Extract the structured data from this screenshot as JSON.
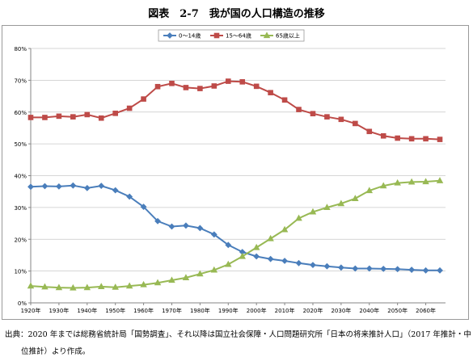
{
  "figure": {
    "title": "図表　2‐7　我が国の人口構造の推移",
    "source_line1": "出典：2020 年までは総務省統計局「国勢調査」、それ以降は国立社会保障・人口問題研究所「日本の将来推計人口」（2017 年推計・中",
    "source_line2": "位推計）より作成。"
  },
  "chart_data": {
    "type": "line",
    "title": "",
    "xlabel": "",
    "ylabel": "",
    "ylim": [
      0,
      80
    ],
    "x_ticks": [
      "1920年",
      "1930年",
      "1940年",
      "1950年",
      "1960年",
      "1970年",
      "1980年",
      "1990年",
      "2000年",
      "2010年",
      "2020年",
      "2030年",
      "2040年",
      "2050年",
      "2060年"
    ],
    "y_ticks": [
      "0%",
      "10%",
      "20%",
      "30%",
      "40%",
      "50%",
      "60%",
      "70%",
      "80%"
    ],
    "x": [
      1920,
      1925,
      1930,
      1935,
      1940,
      1945,
      1950,
      1955,
      1960,
      1965,
      1970,
      1975,
      1980,
      1985,
      1990,
      1995,
      2000,
      2005,
      2010,
      2015,
      2020,
      2025,
      2030,
      2035,
      2040,
      2045,
      2050,
      2055,
      2060,
      2065
    ],
    "grid": true,
    "legend_position": "top",
    "series": [
      {
        "name": "0～14歳",
        "color": "#4a7ebb",
        "marker": "diamond",
        "values": [
          36.5,
          36.7,
          36.6,
          36.9,
          36.1,
          36.8,
          35.4,
          33.4,
          30.2,
          25.7,
          24.0,
          24.3,
          23.5,
          21.5,
          18.2,
          16.0,
          14.6,
          13.8,
          13.2,
          12.5,
          11.9,
          11.5,
          11.1,
          10.8,
          10.8,
          10.7,
          10.6,
          10.4,
          10.2,
          10.2
        ]
      },
      {
        "name": "15～64歳",
        "color": "#be4b48",
        "marker": "square",
        "values": [
          58.3,
          58.3,
          58.7,
          58.5,
          59.2,
          58.1,
          59.6,
          61.2,
          64.1,
          68.0,
          69.0,
          67.7,
          67.4,
          68.2,
          69.7,
          69.5,
          68.1,
          66.1,
          63.8,
          60.8,
          59.5,
          58.5,
          57.7,
          56.4,
          53.9,
          52.5,
          51.8,
          51.6,
          51.6,
          51.4
        ]
      },
      {
        "name": "65歳以上",
        "color": "#98b954",
        "marker": "triangle",
        "values": [
          5.3,
          5.0,
          4.8,
          4.7,
          4.8,
          5.1,
          4.9,
          5.3,
          5.7,
          6.3,
          7.1,
          7.9,
          9.1,
          10.3,
          12.1,
          14.6,
          17.4,
          20.2,
          23.0,
          26.6,
          28.6,
          30.0,
          31.2,
          32.8,
          35.3,
          36.8,
          37.7,
          38.0,
          38.1,
          38.4
        ]
      }
    ]
  }
}
